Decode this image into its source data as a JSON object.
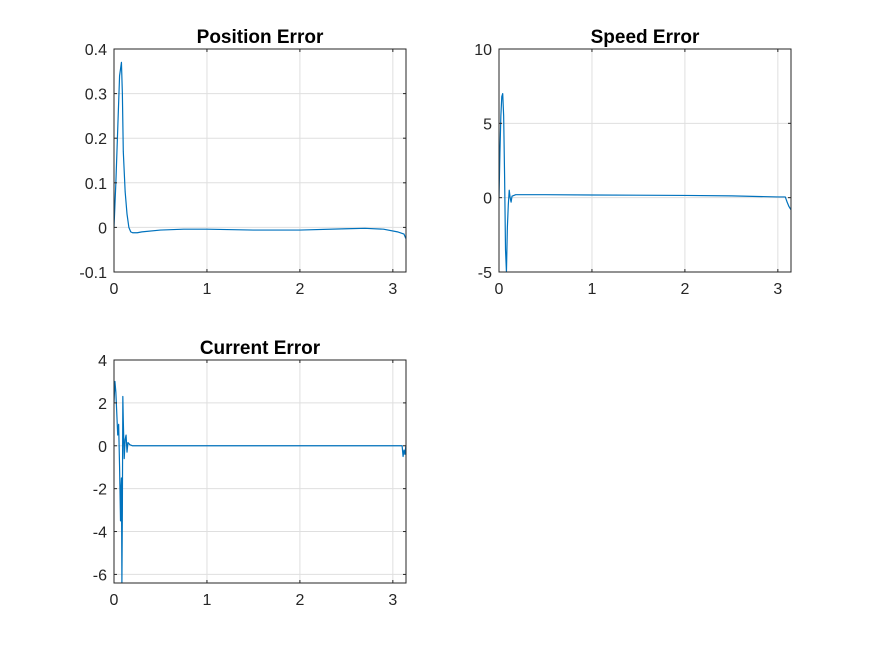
{
  "chart_data": [
    {
      "type": "line",
      "title": "Position Error",
      "xlim": [
        0,
        3.1416
      ],
      "ylim": [
        -0.1,
        0.4
      ],
      "xticks": [
        0,
        1,
        2,
        3
      ],
      "yticks": [
        -0.1,
        0,
        0.1,
        0.2,
        0.3,
        0.4
      ],
      "xtick_labels": [
        "0",
        "1",
        "2",
        "3"
      ],
      "ytick_labels": [
        "-0.1",
        "0",
        "0.1",
        "0.2",
        "0.3",
        "0.4"
      ],
      "grid": true,
      "series": [
        {
          "color": "#0072BD",
          "x": [
            0,
            0.02,
            0.04,
            0.06,
            0.08,
            0.09,
            0.1,
            0.12,
            0.14,
            0.16,
            0.18,
            0.2,
            0.25,
            0.3,
            0.5,
            0.75,
            1.0,
            1.5,
            2.0,
            2.5,
            2.7,
            2.9,
            3.05,
            3.12,
            3.14
          ],
          "y": [
            0.0,
            0.1,
            0.22,
            0.34,
            0.37,
            0.3,
            0.17,
            0.08,
            0.03,
            0.0,
            -0.01,
            -0.012,
            -0.012,
            -0.01,
            -0.006,
            -0.004,
            -0.004,
            -0.006,
            -0.006,
            -0.003,
            -0.002,
            -0.004,
            -0.01,
            -0.015,
            -0.025
          ]
        }
      ]
    },
    {
      "type": "line",
      "title": "Speed Error",
      "xlim": [
        0,
        3.1416
      ],
      "ylim": [
        -5,
        10
      ],
      "xticks": [
        0,
        1,
        2,
        3
      ],
      "yticks": [
        -5,
        0,
        5,
        10
      ],
      "xtick_labels": [
        "0",
        "1",
        "2",
        "3"
      ],
      "ytick_labels": [
        "-5",
        "0",
        "5",
        "10"
      ],
      "grid": true,
      "series": [
        {
          "color": "#0072BD",
          "x": [
            0,
            0.01,
            0.02,
            0.03,
            0.04,
            0.05,
            0.06,
            0.07,
            0.08,
            0.09,
            0.1,
            0.11,
            0.12,
            0.13,
            0.14,
            0.16,
            0.18,
            0.5,
            1.0,
            2.0,
            2.5,
            3.0,
            3.08,
            3.1,
            3.12,
            3.14
          ],
          "y": [
            0,
            3.0,
            5.5,
            6.8,
            7.0,
            5.5,
            1.5,
            -3.5,
            -5.0,
            -2.0,
            -0.5,
            0.5,
            0.0,
            -0.3,
            0.1,
            0.15,
            0.2,
            0.2,
            0.18,
            0.15,
            0.12,
            0.05,
            0.05,
            -0.3,
            -0.6,
            -0.8
          ]
        }
      ]
    },
    {
      "type": "line",
      "title": "Current Error",
      "xlim": [
        0,
        3.1416
      ],
      "ylim": [
        -6.4,
        4
      ],
      "xticks": [
        0,
        1,
        2,
        3
      ],
      "yticks": [
        -6,
        -4,
        -2,
        0,
        2,
        4
      ],
      "xtick_labels": [
        "0",
        "1",
        "2",
        "3"
      ],
      "ytick_labels": [
        "-6",
        "-4",
        "-2",
        "0",
        "2",
        "4"
      ],
      "grid": true,
      "series": [
        {
          "color": "#0072BD",
          "x": [
            0,
            0.01,
            0.02,
            0.03,
            0.04,
            0.05,
            0.06,
            0.07,
            0.075,
            0.08,
            0.085,
            0.09,
            0.095,
            0.1,
            0.11,
            0.12,
            0.13,
            0.14,
            0.15,
            0.17,
            0.2,
            0.5,
            1.0,
            2.0,
            3.0,
            3.1,
            3.11,
            3.12,
            3.13,
            3.14
          ],
          "y": [
            2.0,
            3.0,
            2.5,
            1.5,
            0.5,
            1.0,
            -1.0,
            -3.5,
            -2.0,
            -1.5,
            -6.4,
            -3.0,
            2.3,
            1.2,
            -0.6,
            0.3,
            0.5,
            -0.3,
            0.15,
            0.05,
            0.0,
            0.0,
            0.0,
            0.0,
            0.0,
            0.0,
            -0.5,
            -0.2,
            -0.4,
            0.0
          ]
        }
      ]
    }
  ]
}
